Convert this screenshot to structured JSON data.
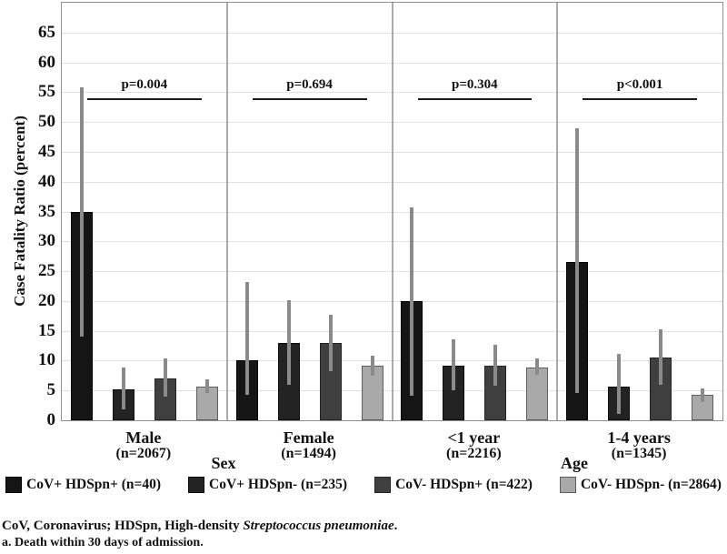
{
  "chart_data": {
    "type": "bar",
    "title": "",
    "ylabel": "Case Fatality Ratio (percent)",
    "ylim": [
      0,
      70
    ],
    "yticks": [
      0,
      5,
      10,
      15,
      20,
      25,
      30,
      35,
      40,
      45,
      50,
      55,
      60,
      65
    ],
    "grid": true,
    "legend_position": "bottom",
    "p_line_value": 54,
    "error_bar_color": "#8a8a8a",
    "grid_color": "#e2e2e2",
    "frame_color": "#8f8f8f",
    "groups": [
      {
        "label": "Male",
        "sublabel": "(n=2067)",
        "p_value": "p=0.004"
      },
      {
        "label": "Female",
        "sublabel": "(n=1494)",
        "p_value": "p=0.694"
      },
      {
        "label": "<1 year",
        "sublabel": "(n=2216)",
        "p_value": "p=0.304"
      },
      {
        "label": "1-4 years",
        "sublabel": "(n=1345)",
        "p_value": "p<0.001"
      }
    ],
    "series": [
      {
        "name": "CoV+ HDSpn+ (n=40)",
        "color": "#151515",
        "border": "#000000",
        "values": [
          35.0,
          10.0,
          20.0,
          26.6
        ],
        "err_low": [
          14.0,
          4.2,
          4.1,
          4.5
        ],
        "err_high": [
          55.8,
          23.2,
          35.7,
          49.0
        ]
      },
      {
        "name": "CoV+ HDSpn- (n=235)",
        "color": "#232323",
        "border": "#0d0d0d",
        "values": [
          5.2,
          12.9,
          9.2,
          5.6
        ],
        "err_low": [
          1.8,
          5.9,
          5.0,
          1.0
        ],
        "err_high": [
          8.8,
          20.1,
          13.6,
          11.1
        ]
      },
      {
        "name": "CoV- HDSpn+ (n=422)",
        "color": "#3f3f3f",
        "border": "#262626",
        "values": [
          7.0,
          12.9,
          9.1,
          10.6
        ],
        "err_low": [
          4.0,
          8.2,
          5.8,
          6.0
        ],
        "err_high": [
          10.3,
          17.7,
          12.6,
          15.2
        ]
      },
      {
        "name": "CoV- HDSpn- (n=2864)",
        "color": "#a9a9a9",
        "border": "#5e5e5e",
        "values": [
          5.7,
          9.1,
          8.8,
          4.3
        ],
        "err_low": [
          4.6,
          7.5,
          7.7,
          3.1
        ],
        "err_high": [
          6.8,
          10.8,
          10.3,
          5.4
        ]
      }
    ],
    "axis_group_labels": [
      {
        "label": "Sex"
      },
      {
        "label": "Age"
      }
    ]
  },
  "footnotes": {
    "line1_prefix": "CoV, Coronavirus; HDSpn, High-density ",
    "line1_italic": "Streptococcus pneumoniae",
    "line1_suffix": ".",
    "line2": "a. Death within 30 days of admission."
  }
}
